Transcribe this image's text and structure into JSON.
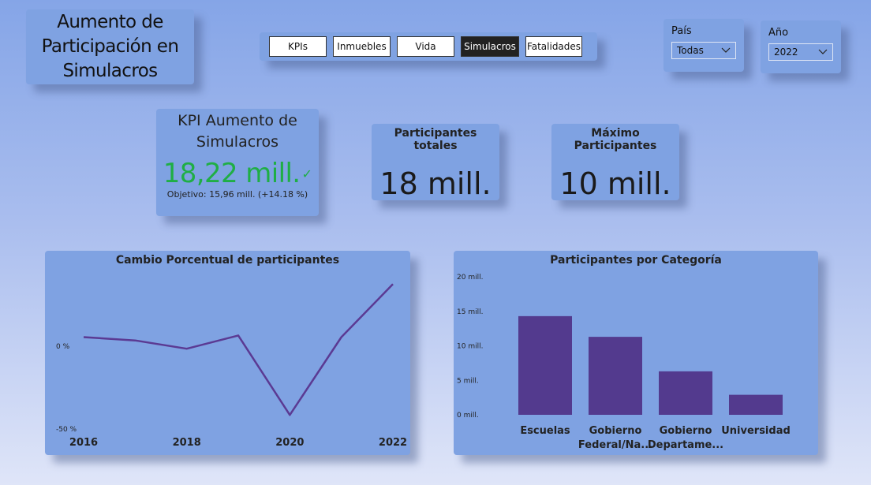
{
  "title": {
    "text": "Aumento de\nParticipación en\nSimulacros"
  },
  "nav": {
    "buttons": [
      {
        "label": "KPIs"
      },
      {
        "label": "Inmuebles"
      },
      {
        "label": "Vida"
      },
      {
        "label": "Simulacros"
      },
      {
        "label": "Fatalidades"
      }
    ],
    "active": "Simulacros"
  },
  "filters": {
    "pais": {
      "label": "País",
      "value": "Todas"
    },
    "anio": {
      "label": "Año",
      "value": "2022"
    }
  },
  "kpi": {
    "title": "KPI Aumento de\nSimulacros",
    "value": "18,22 mill.",
    "goal": "Objetivo: 15,96 mill. (+14.18 %)",
    "status_color": "#1fae45"
  },
  "stats": {
    "total": {
      "label": "Participantes totales",
      "value": "18 mill."
    },
    "max": {
      "label": "Máximo Participantes",
      "value": "10 mill."
    }
  },
  "colors": {
    "series": "#5b3a93",
    "bar": "#533a8e"
  },
  "chart_data": [
    {
      "type": "line",
      "title": "Cambio Porcentual de participantes",
      "x": [
        2016,
        2017,
        2018,
        2019,
        2020,
        2021,
        2022
      ],
      "x_tick_labels": [
        "2016",
        "2018",
        "2020",
        "2022"
      ],
      "y_tick_labels": [
        "0 %",
        "-50 %"
      ],
      "y_ticks": [
        0,
        -50
      ],
      "values": [
        5,
        3,
        -2,
        6,
        -42,
        5,
        37
      ],
      "ylim": [
        -50,
        40
      ],
      "grid": false
    },
    {
      "type": "bar",
      "title": "Participantes por Categoría",
      "categories": [
        "Escuelas",
        "Gobierno Federal/Na...",
        "Gobierno Departame...",
        "Universidad"
      ],
      "category_lines": [
        [
          "Escuelas"
        ],
        [
          "Gobierno",
          "Federal/Na..."
        ],
        [
          "Gobierno",
          "Departame..."
        ],
        [
          "Universidad"
        ]
      ],
      "values": [
        14.3,
        11.3,
        6.3,
        2.9
      ],
      "y_ticks": [
        0,
        5,
        10,
        15,
        20
      ],
      "y_tick_labels": [
        "0 mill.",
        "5 mill.",
        "10 mill.",
        "15 mill.",
        "20 mill."
      ],
      "ylim": [
        0,
        20
      ],
      "grid": false
    }
  ]
}
